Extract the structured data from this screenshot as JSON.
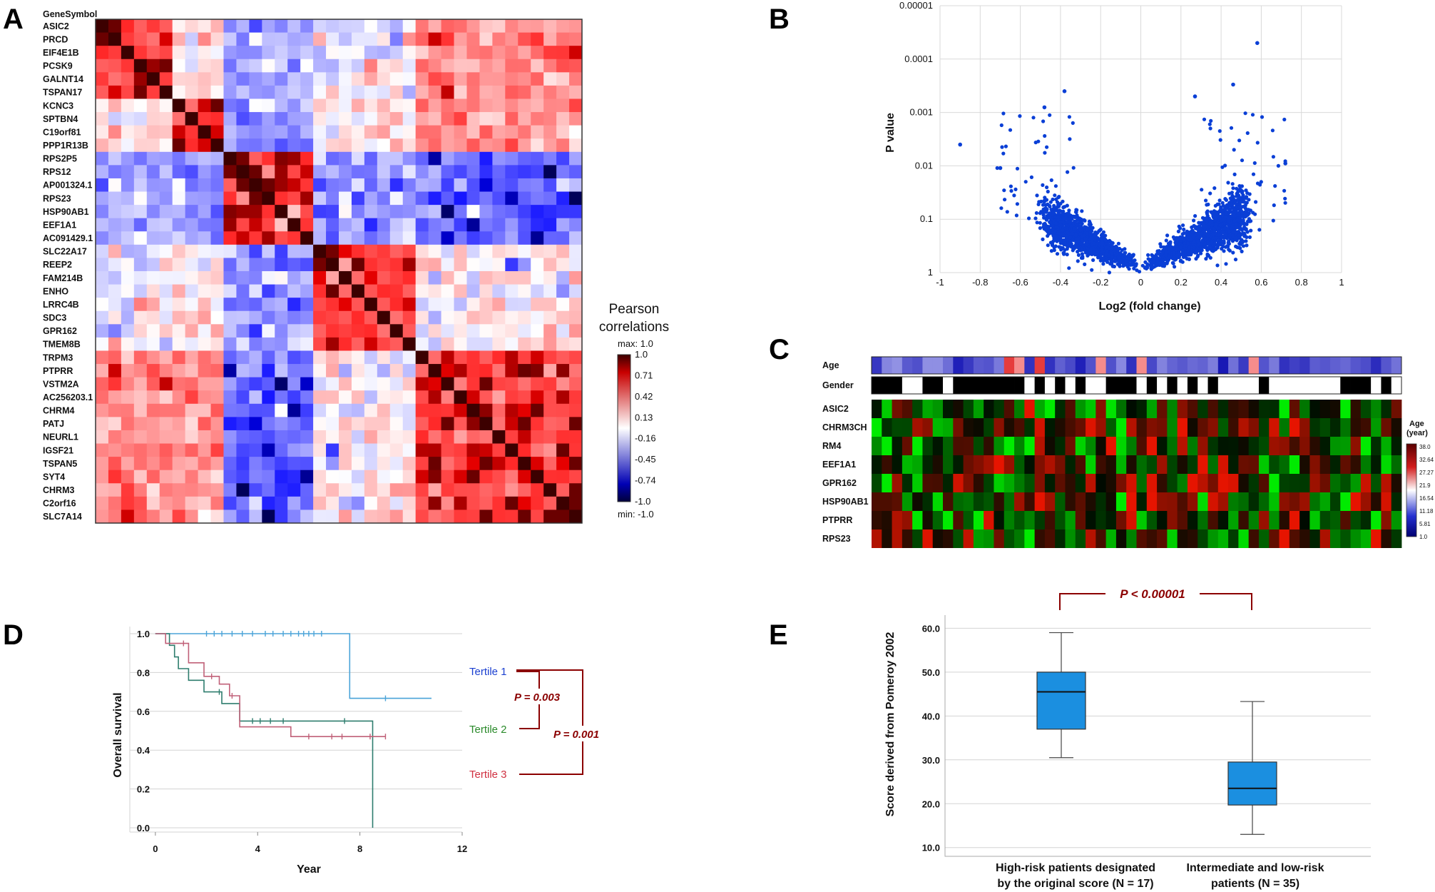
{
  "panels": {
    "a": "A",
    "b": "B",
    "c": "C",
    "d": "D",
    "e": "E"
  },
  "colors": {
    "corr_neg": "#0000b4",
    "corr_pos": "#c80000",
    "corr_max": "#3c0000",
    "volcano_point": "#0a3fd6",
    "km_t1": "#4aa3d8",
    "km_t2": "#2e7d6e",
    "km_t3": "#c06078",
    "pval": "#8b0000",
    "box_fill": "#1b8fe0"
  },
  "chart_data": [
    {
      "type": "heatmap",
      "panel": "A",
      "title": "Pearson correlations",
      "header": "GeneSymbol",
      "genes": [
        "ASIC2",
        "PRCD",
        "EIF4E1B",
        "PCSK9",
        "GALNT14",
        "TSPAN17",
        "KCNC3",
        "SPTBN4",
        "C19orf81",
        "PPP1R13B",
        "RPS2P5",
        "RPS12",
        "AP001324.1",
        "RPS23",
        "HSP90AB1",
        "EEF1A1",
        "AC091429.1",
        "SLC22A17",
        "REEP2",
        "FAM214B",
        "ENHO",
        "LRRC4B",
        "SDC3",
        "GPR162",
        "TMEM8B",
        "TRPM3",
        "PTPRR",
        "VSTM2A",
        "AC256203.1",
        "CHRM4",
        "PATJ",
        "NEURL1",
        "IGSF21",
        "TSPAN5",
        "SYT4",
        "CHRM3",
        "C2orf16",
        "SLC7A14"
      ],
      "clusters": [
        [
          0,
          6
        ],
        [
          6,
          10
        ],
        [
          10,
          17
        ],
        [
          17,
          25
        ],
        [
          25,
          38
        ]
      ],
      "cluster_correlation": [
        [
          0.75,
          0.15,
          -0.3,
          -0.1,
          0.45
        ],
        [
          0.15,
          0.7,
          -0.35,
          0.1,
          0.4
        ],
        [
          -0.3,
          -0.35,
          0.85,
          -0.35,
          -0.55
        ],
        [
          -0.1,
          0.1,
          -0.35,
          0.75,
          0.05
        ],
        [
          0.45,
          0.4,
          -0.55,
          0.05,
          0.75
        ]
      ],
      "legend": {
        "max_label": "max: 1.0",
        "min_label": "min: -1.0",
        "ticks": [
          "1.0",
          "0.71",
          "0.42",
          "0.13",
          "-0.16",
          "-0.45",
          "-0.74",
          "-1.0"
        ]
      }
    },
    {
      "type": "scatter",
      "panel": "B",
      "xlabel": "Log2 (fold change)",
      "ylabel": "P value",
      "xlim": [
        -1,
        1
      ],
      "xticks": [
        "-1",
        "-0.8",
        "-0.6",
        "-0.4",
        "-0.2",
        "0",
        "0.2",
        "0.4",
        "0.6",
        "0.8",
        "1"
      ],
      "yticks": [
        "0.00001",
        "0.0001",
        "0.001",
        "0.01",
        "0.1",
        "1"
      ],
      "y_scale": "log10 reversed, from 1 down to 0.00001",
      "highlight_points": [
        {
          "x": 0.58,
          "p": 5e-05
        },
        {
          "x": -0.9,
          "p": 0.004
        },
        {
          "x": 0.27,
          "p": 0.0005
        },
        {
          "x": -0.38,
          "p": 0.0004
        },
        {
          "x": 0.46,
          "p": 0.0003
        },
        {
          "x": -0.48,
          "p": 0.0008
        },
        {
          "x": 0.72,
          "p": 0.009
        },
        {
          "x": -0.7,
          "p": 0.011
        }
      ]
    },
    {
      "type": "heatmap",
      "panel": "C",
      "rows": [
        "Age",
        "Gender",
        "ASIC2",
        "CHRM3CH",
        "RM4",
        "EEF1A1",
        "GPR162",
        "HSP90AB1",
        "PTPRR",
        "RPS23"
      ],
      "columns": 52,
      "legend_title": "Age",
      "legend_unit": "(year)",
      "legend_ticks": [
        "38.0",
        "32.64",
        "27.27",
        "21.9",
        "16.54",
        "11.18",
        "5.81",
        "1.0"
      ]
    },
    {
      "type": "line",
      "panel": "D",
      "xlabel": "Year",
      "ylabel": "Overall survival",
      "xlim": [
        -1,
        12
      ],
      "ylim": [
        0,
        1
      ],
      "xticks": [
        "0",
        "4",
        "8",
        "12"
      ],
      "yticks": [
        "0.0",
        "0.2",
        "0.4",
        "0.6",
        "0.8",
        "1.0"
      ],
      "series": [
        {
          "name": "Tertile 1",
          "color": "#4aa3d8",
          "steps": [
            [
              0,
              1.0
            ],
            [
              7.6,
              1.0
            ],
            [
              7.6,
              0.667
            ],
            [
              10.8,
              0.667
            ]
          ],
          "censor": [
            2,
            2.3,
            2.6,
            3,
            3.4,
            3.8,
            4.3,
            4.6,
            5,
            5.3,
            5.6,
            5.8,
            6,
            6.2,
            6.5,
            9
          ]
        },
        {
          "name": "Tertile 2",
          "color": "#2e7d6e",
          "steps": [
            [
              0,
              1.0
            ],
            [
              0.55,
              1.0
            ],
            [
              0.55,
              0.94
            ],
            [
              0.75,
              0.94
            ],
            [
              0.75,
              0.88
            ],
            [
              0.9,
              0.88
            ],
            [
              0.9,
              0.82
            ],
            [
              1.3,
              0.82
            ],
            [
              1.3,
              0.76
            ],
            [
              1.9,
              0.76
            ],
            [
              1.9,
              0.7
            ],
            [
              2.6,
              0.7
            ],
            [
              2.6,
              0.64
            ],
            [
              3.3,
              0.64
            ],
            [
              3.3,
              0.55
            ],
            [
              8.5,
              0.55
            ],
            [
              8.5,
              0.0
            ]
          ],
          "censor": [
            2.5,
            3.8,
            4.1,
            4.5,
            5,
            7.4
          ]
        },
        {
          "name": "Tertile 3",
          "color": "#c06078",
          "steps": [
            [
              0,
              1.0
            ],
            [
              0.4,
              1.0
            ],
            [
              0.4,
              0.95
            ],
            [
              1.3,
              0.95
            ],
            [
              1.3,
              0.85
            ],
            [
              1.9,
              0.85
            ],
            [
              1.9,
              0.78
            ],
            [
              2.5,
              0.78
            ],
            [
              2.5,
              0.74
            ],
            [
              2.9,
              0.74
            ],
            [
              2.9,
              0.68
            ],
            [
              3.3,
              0.68
            ],
            [
              3.3,
              0.52
            ],
            [
              5.3,
              0.52
            ],
            [
              5.3,
              0.47
            ],
            [
              9,
              0.47
            ]
          ],
          "censor": [
            1.1,
            2.2,
            3,
            6,
            6.9,
            7.3,
            8.4,
            9
          ]
        }
      ],
      "pvalues": [
        {
          "label": "P = 0.003",
          "between": [
            "Tertile 1",
            "Tertile 2"
          ]
        },
        {
          "label": "P = 0.001",
          "between": [
            "Tertile 1",
            "Tertile 3"
          ]
        }
      ]
    },
    {
      "type": "box",
      "panel": "E",
      "ylabel": "Score derived from Pomeroy 2002",
      "ylim": [
        8,
        63
      ],
      "yticks": [
        "10.0",
        "20.0",
        "30.0",
        "40.0",
        "50.0",
        "60.0"
      ],
      "categories": [
        "High-risk patients designated by the original score (N = 17)",
        "Intermediate and low-risk patients (N = 35)"
      ],
      "category_lines": [
        [
          "High-risk patients designated",
          "by the original score (N = 17)"
        ],
        [
          "Intermediate and low-risk",
          "patients (N = 35)"
        ]
      ],
      "boxes": [
        {
          "whisker_low": 30.5,
          "q1": 37,
          "median": 45.5,
          "q3": 50,
          "whisker_high": 59
        },
        {
          "whisker_low": 13,
          "q1": 19.7,
          "median": 23.5,
          "q3": 29.5,
          "whisker_high": 43.3
        }
      ],
      "pvalue": "P < 0.00001"
    }
  ]
}
